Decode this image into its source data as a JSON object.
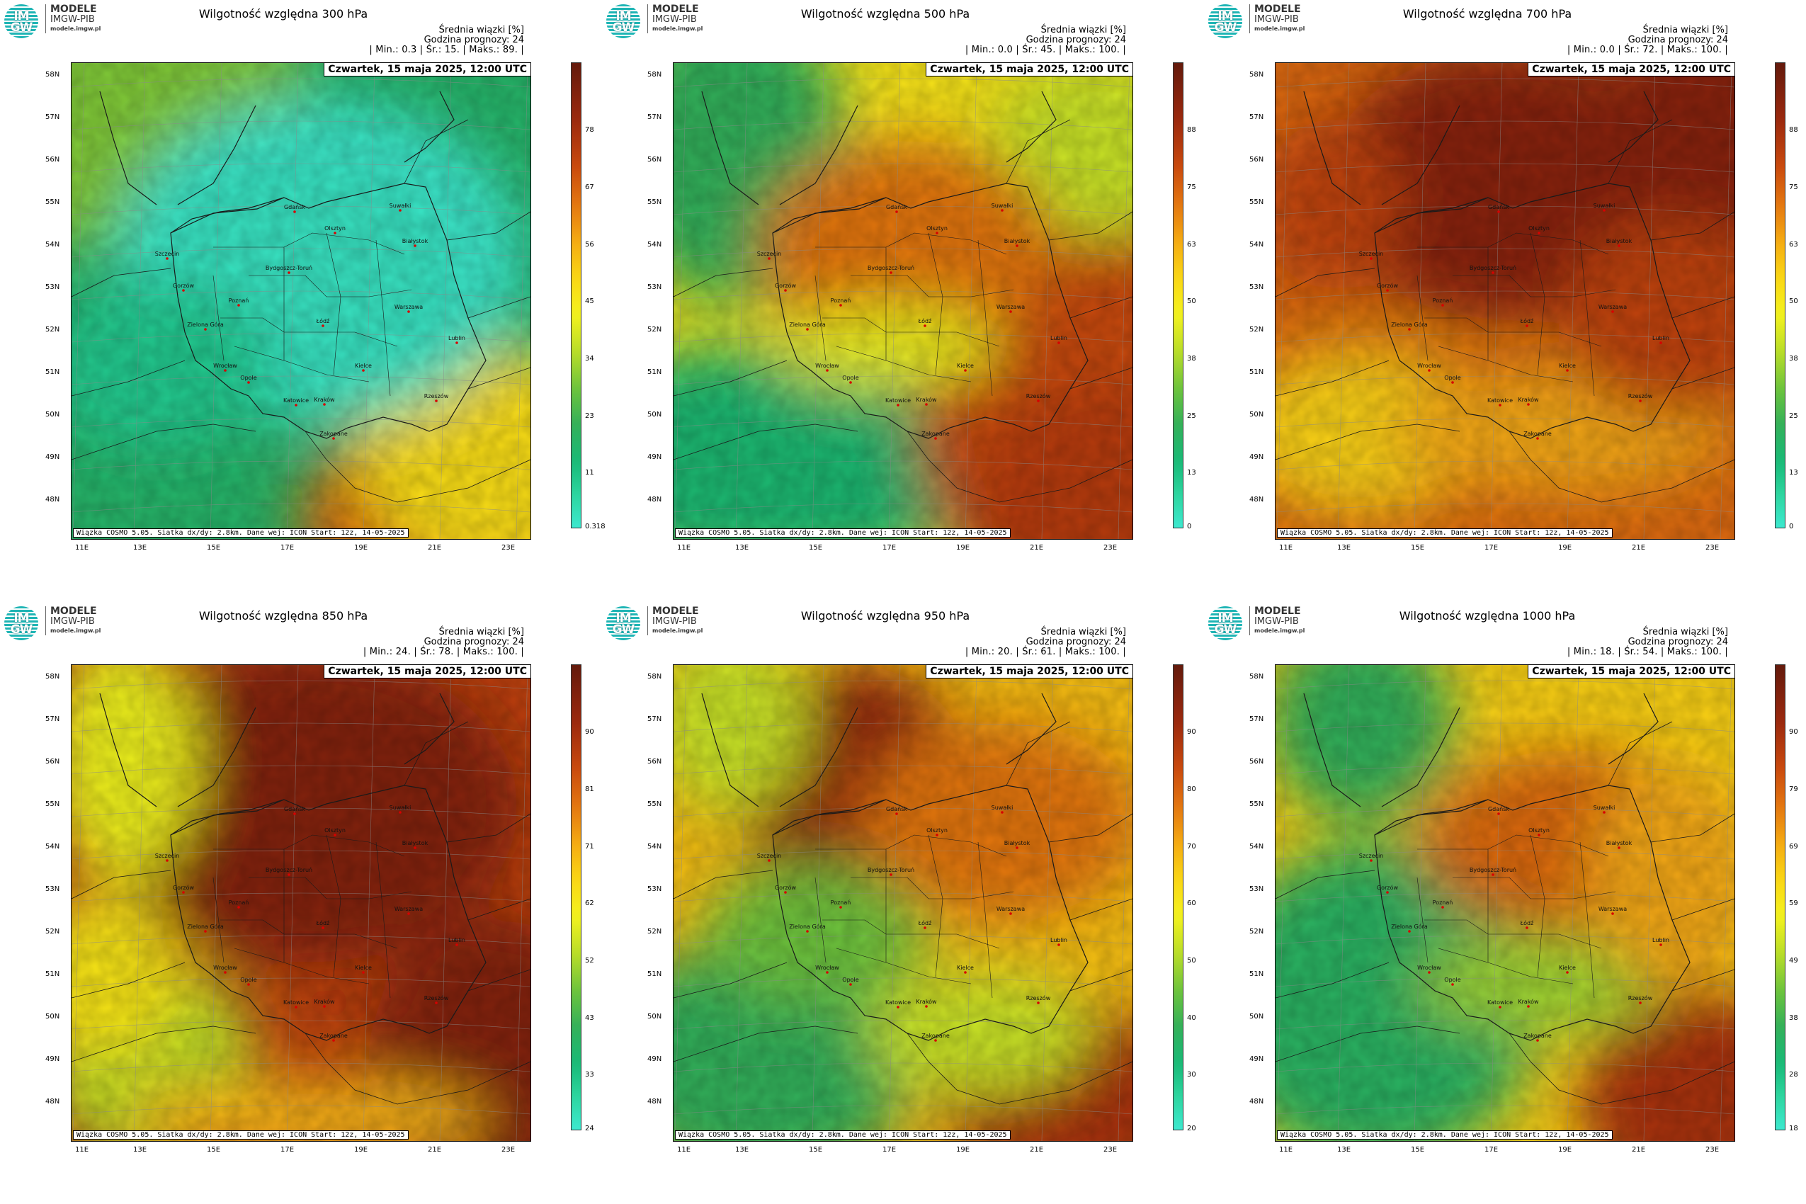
{
  "logo": {
    "monogram": "IM GW",
    "line1": "MODELE",
    "line2": "IMGW-PIB",
    "line3": "modele.imgw.pl"
  },
  "common": {
    "legend_title": "Średnia wiązki [%]",
    "forecast_hour": "Godzina prognozy: 24",
    "date": "Czwartek, 15 maja 2025, 12:00 UTC",
    "footer": "Wiązka COSMO 5.05. Siatka dx/dy: 2.8km. Dane wej: ICON Start: 12z, 14-05-2025",
    "lat_labels": [
      "58N",
      "57N",
      "56N",
      "55N",
      "54N",
      "53N",
      "52N",
      "51N",
      "50N",
      "49N",
      "48N"
    ],
    "lon_labels": [
      "11E",
      "13E",
      "15E",
      "17E",
      "19E",
      "21E",
      "23E"
    ],
    "cities": [
      "Gdańsk",
      "Olsztyn",
      "Suwałki",
      "Białystok",
      "Szczecin",
      "Gorzów",
      "Bydgoszcz-Toruń",
      "Poznań",
      "Zielona Góra",
      "Łódź",
      "Warszawa",
      "Lublin",
      "Wrocław",
      "Opole",
      "Katowice",
      "Kraków",
      "Kielce",
      "Rzeszów",
      "Zakopane"
    ]
  },
  "panels": [
    {
      "title": "Wilgotność względna 300 hPa",
      "stats": "| Min.:    0.3 | Śr.:     15. | Maks.:    89. |",
      "colorbar_ticks": [
        "78",
        "67",
        "56",
        "45",
        "34",
        "23",
        "11",
        "0.318"
      ],
      "colorbar_colors": {
        "low": "#3de8cf",
        "high": "#6b2410"
      },
      "mean": 15,
      "max": 89,
      "min": 0.3
    },
    {
      "title": "Wilgotność względna 500 hPa",
      "stats": "| Min.:    0.0 | Śr.:     45. | Maks.:    100. |",
      "colorbar_ticks": [
        "88",
        "75",
        "63",
        "50",
        "38",
        "25",
        "13",
        "0"
      ],
      "colorbar_colors": {
        "low": "#3de8cf",
        "high": "#6b2410"
      },
      "mean": 45,
      "max": 100,
      "min": 0
    },
    {
      "title": "Wilgotność względna 700 hPa",
      "stats": "| Min.:    0.0 | Śr.:     72. | Maks.:    100. |",
      "colorbar_ticks": [
        "88",
        "75",
        "63",
        "50",
        "38",
        "25",
        "13",
        "0"
      ],
      "colorbar_colors": {
        "low": "#3de8cf",
        "high": "#6b2410"
      },
      "mean": 72,
      "max": 100,
      "min": 0
    },
    {
      "title": "Wilgotność względna 850 hPa",
      "stats": "| Min.:    24. | Śr.:     78. | Maks.:    100. |",
      "colorbar_ticks": [
        "90",
        "81",
        "71",
        "62",
        "52",
        "43",
        "33",
        "24"
      ],
      "colorbar_colors": {
        "low": "#3de8cf",
        "high": "#6b2410"
      },
      "mean": 78,
      "max": 100,
      "min": 24
    },
    {
      "title": "Wilgotność względna 950 hPa",
      "stats": "| Min.:    20. | Śr.:     61. | Maks.:    100. |",
      "colorbar_ticks": [
        "90",
        "80",
        "70",
        "60",
        "50",
        "40",
        "30",
        "20"
      ],
      "colorbar_colors": {
        "low": "#3de8cf",
        "high": "#6b2410"
      },
      "mean": 61,
      "max": 100,
      "min": 20
    },
    {
      "title": "Wilgotność względna 1000 hPa",
      "stats": "| Min.:    18. | Śr.:     54. | Maks.:    100. |",
      "colorbar_ticks": [
        "90",
        "79",
        "69",
        "59",
        "49",
        "38",
        "28",
        "18"
      ],
      "colorbar_colors": {
        "low": "#3de8cf",
        "high": "#6b2410"
      },
      "mean": 54,
      "max": 100,
      "min": 18
    }
  ]
}
